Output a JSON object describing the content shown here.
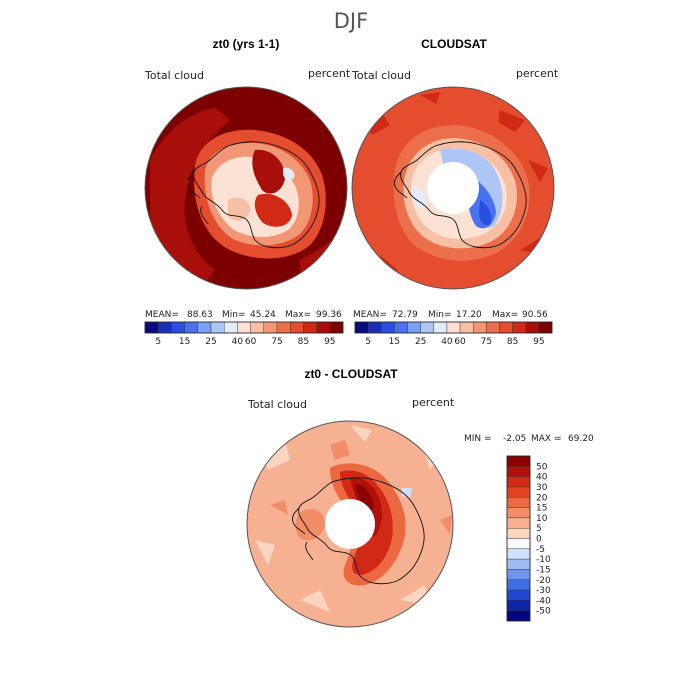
{
  "figure": {
    "title": "DJF"
  },
  "chart_data": [
    {
      "type": "heatmap",
      "projection": "south-polar-stereographic",
      "title": "zt0 (yrs 1-1)",
      "left_label": "Total cloud",
      "right_label": "percent",
      "stats": {
        "mean_label": "MEAN=",
        "mean": "88.63",
        "min_label": "Min=",
        "min": "45.24",
        "max_label": "Max=",
        "max": "99.36"
      },
      "colorbar": {
        "tick_labels": [
          "5",
          "15",
          "25",
          "40",
          "60",
          "75",
          "85",
          "95"
        ],
        "colors": [
          "#0b0b7f",
          "#1a2fb4",
          "#2a4fe0",
          "#4a72ee",
          "#7b9ff2",
          "#adc6f6",
          "#e3ecfb",
          "#fbe2d4",
          "#f7bfa4",
          "#f29776",
          "#ec6f4b",
          "#e44d2d",
          "#d02a17",
          "#a80e0a",
          "#7d0000"
        ]
      },
      "grid": false
    },
    {
      "type": "heatmap",
      "projection": "south-polar-stereographic",
      "title": "CLOUDSAT",
      "left_label": "Total cloud",
      "right_label": "percent",
      "stats": {
        "mean_label": "MEAN=",
        "mean": "72.79",
        "min_label": "Min=",
        "min": "17.20",
        "max_label": "Max=",
        "max": "90.56"
      },
      "colorbar": {
        "tick_labels": [
          "5",
          "15",
          "25",
          "40",
          "60",
          "75",
          "85",
          "95"
        ],
        "colors": [
          "#0b0b7f",
          "#1a2fb4",
          "#2a4fe0",
          "#4a72ee",
          "#7b9ff2",
          "#adc6f6",
          "#e3ecfb",
          "#fbe2d4",
          "#f7bfa4",
          "#f29776",
          "#ec6f4b",
          "#e44d2d",
          "#d02a17",
          "#a80e0a",
          "#7d0000"
        ]
      },
      "grid": false
    },
    {
      "type": "heatmap",
      "projection": "south-polar-stereographic",
      "title": "zt0 - CLOUDSAT",
      "left_label": "Total cloud",
      "right_label": "percent",
      "stats": {
        "min_label": "MIN =",
        "min": "-2.05",
        "max_label": "MAX =",
        "max": "69.20"
      },
      "colorbar": {
        "orientation": "vertical",
        "tick_labels": [
          "50",
          "40",
          "30",
          "20",
          "15",
          "10",
          "5",
          "0",
          "-5",
          "-10",
          "-15",
          "-20",
          "-30",
          "-40",
          "-50"
        ],
        "colors": [
          "#8b0000",
          "#b00f0a",
          "#d02a17",
          "#e2421f",
          "#ec6840",
          "#f28d68",
          "#f6b192",
          "#fad5c0",
          "#f6f8fc",
          "#cfe0fb",
          "#9fbdf5",
          "#6f96ee",
          "#3f6de8",
          "#2146d2",
          "#0f24a8",
          "#050580"
        ]
      },
      "grid": false
    }
  ]
}
